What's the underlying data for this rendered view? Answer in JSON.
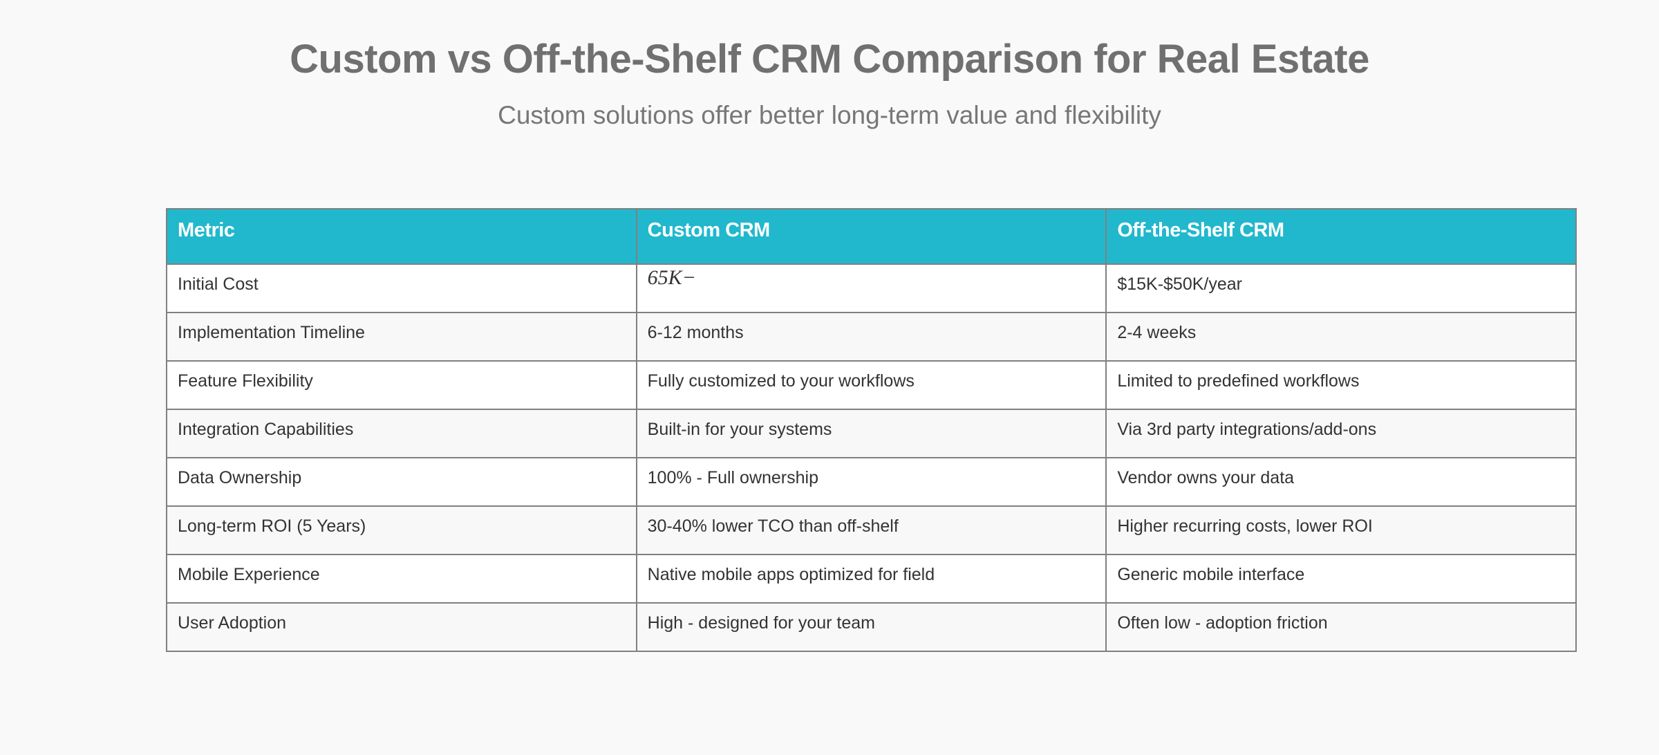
{
  "title": "Custom vs Off-the-Shelf CRM Comparison for Real Estate",
  "subtitle": "Custom solutions offer better long-term value and flexibility",
  "table": {
    "headers": [
      "Metric",
      "Custom CRM",
      "Off-the-Shelf CRM"
    ],
    "rows": [
      [
        "Initial Cost",
        "65K−",
        "$15K-$50K/year"
      ],
      [
        "Implementation Timeline",
        "6-12 months",
        "2-4 weeks"
      ],
      [
        "Feature Flexibility",
        "Fully customized to your workflows",
        "Limited to predefined workflows"
      ],
      [
        "Integration Capabilities",
        "Built-in for your systems",
        "Via 3rd party integrations/add-ons"
      ],
      [
        "Data Ownership",
        "100% - Full ownership",
        "Vendor owns your data"
      ],
      [
        "Long-term ROI (5 Years)",
        "30-40% lower TCO than off-shelf",
        "Higher recurring costs, lower ROI"
      ],
      [
        "Mobile Experience",
        "Native mobile apps optimized for field",
        "Generic mobile interface"
      ],
      [
        "User Adoption",
        "High - designed for your team",
        "Often low - adoption friction"
      ]
    ]
  },
  "colors": {
    "header_bg": "#21b8cd",
    "header_text": "#ffffff",
    "border": "#808080"
  }
}
